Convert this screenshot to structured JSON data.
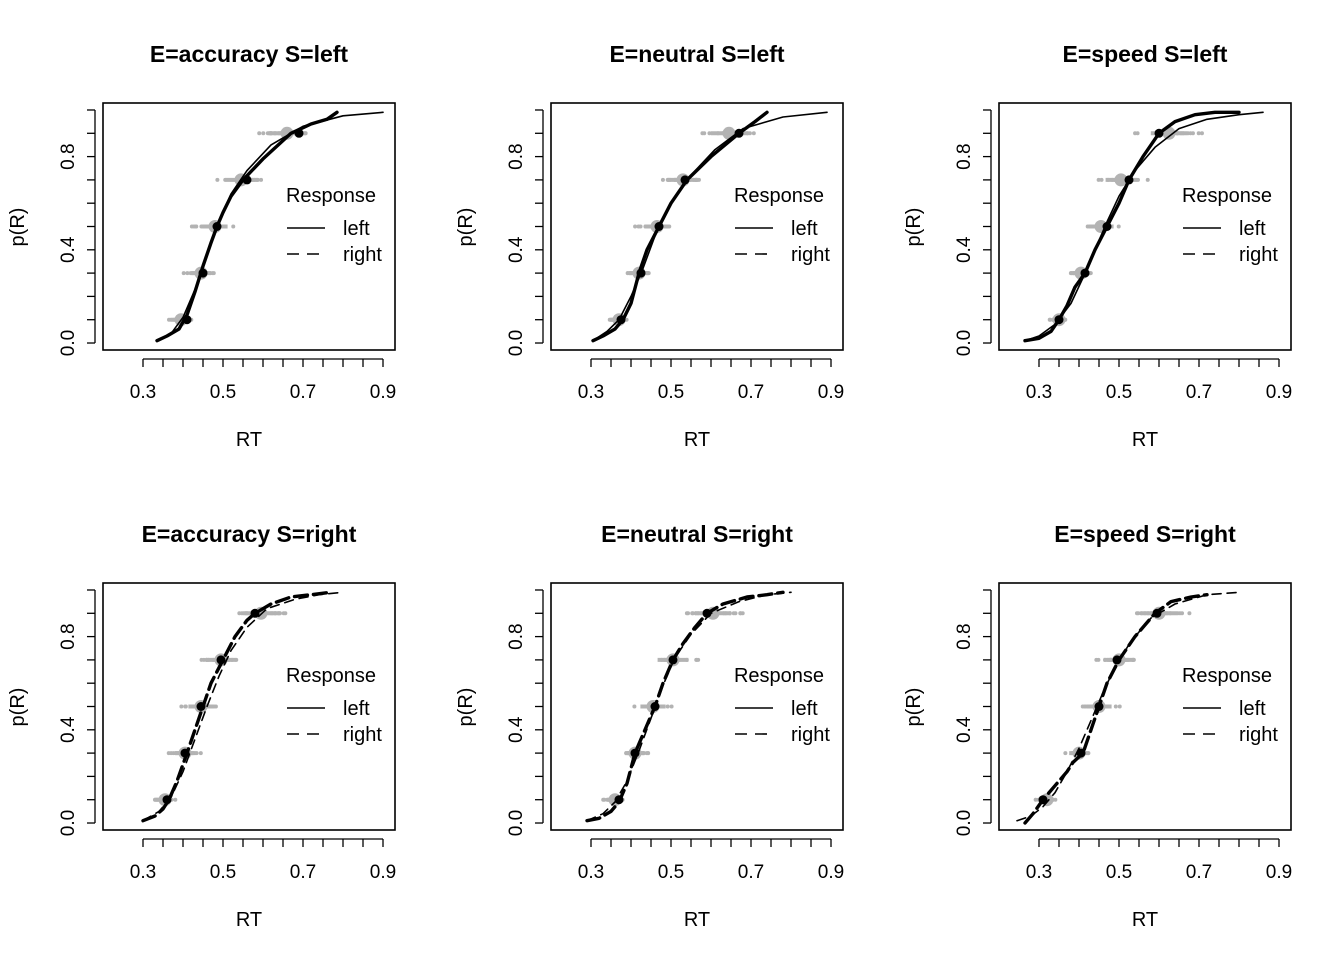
{
  "chart_data": [
    {
      "type": "line",
      "title": "E=accuracy S=left",
      "xlabel": "RT",
      "ylabel": "p(R)",
      "xlim": [
        0.2,
        0.93
      ],
      "ylim": [
        -0.03,
        1.03
      ],
      "xticks": [
        "0.3",
        "0.5",
        "0.7",
        "0.9"
      ],
      "yticks": [
        "0.0",
        "0.4",
        "0.8"
      ],
      "legend": {
        "title": "Response",
        "entries": [
          "left",
          "right"
        ],
        "styles": [
          "solid",
          "dashed"
        ]
      },
      "series": [
        {
          "name": "left (observed)",
          "style": "solid-thick",
          "x": [
            0.335,
            0.36,
            0.39,
            0.41,
            0.43,
            0.45,
            0.47,
            0.485,
            0.5,
            0.52,
            0.55,
            0.6,
            0.67,
            0.72,
            0.76,
            0.785
          ],
          "y": [
            0.01,
            0.03,
            0.06,
            0.12,
            0.22,
            0.33,
            0.43,
            0.5,
            0.56,
            0.63,
            0.7,
            0.79,
            0.9,
            0.94,
            0.96,
            0.99
          ]
        },
        {
          "name": "left (model)",
          "style": "solid-thin",
          "x": [
            0.335,
            0.37,
            0.4,
            0.43,
            0.46,
            0.49,
            0.52,
            0.56,
            0.62,
            0.7,
            0.8,
            0.9
          ],
          "y": [
            0.01,
            0.04,
            0.11,
            0.23,
            0.38,
            0.52,
            0.64,
            0.74,
            0.85,
            0.93,
            0.975,
            0.99
          ]
        }
      ],
      "quantiles": {
        "p": [
          0.1,
          0.3,
          0.5,
          0.7,
          0.9
        ],
        "observed": [
          0.41,
          0.45,
          0.485,
          0.56,
          0.69
        ],
        "predicted": [
          0.395,
          0.445,
          0.48,
          0.545,
          0.66
        ]
      }
    },
    {
      "type": "line",
      "title": "E=neutral S=left",
      "xlabel": "RT",
      "ylabel": "p(R)",
      "xlim": [
        0.2,
        0.93
      ],
      "ylim": [
        -0.03,
        1.03
      ],
      "xticks": [
        "0.3",
        "0.5",
        "0.7",
        "0.9"
      ],
      "yticks": [
        "0.0",
        "0.4",
        "0.8"
      ],
      "legend": {
        "title": "Response",
        "entries": [
          "left",
          "right"
        ],
        "styles": [
          "solid",
          "dashed"
        ]
      },
      "series": [
        {
          "name": "left (observed)",
          "style": "solid-thick",
          "x": [
            0.305,
            0.33,
            0.36,
            0.38,
            0.4,
            0.42,
            0.44,
            0.47,
            0.5,
            0.54,
            0.6,
            0.67,
            0.71,
            0.74
          ],
          "y": [
            0.01,
            0.03,
            0.06,
            0.1,
            0.17,
            0.3,
            0.4,
            0.5,
            0.6,
            0.7,
            0.8,
            0.9,
            0.95,
            0.99
          ]
        },
        {
          "name": "left (model)",
          "style": "solid-thin",
          "x": [
            0.305,
            0.34,
            0.37,
            0.4,
            0.43,
            0.46,
            0.5,
            0.55,
            0.61,
            0.68,
            0.78,
            0.89
          ],
          "y": [
            0.01,
            0.05,
            0.1,
            0.2,
            0.32,
            0.46,
            0.6,
            0.72,
            0.83,
            0.92,
            0.97,
            0.99
          ]
        }
      ],
      "quantiles": {
        "p": [
          0.1,
          0.3,
          0.5,
          0.7,
          0.9
        ],
        "observed": [
          0.375,
          0.425,
          0.47,
          0.535,
          0.67
        ],
        "predicted": [
          0.37,
          0.42,
          0.465,
          0.53,
          0.645
        ]
      }
    },
    {
      "type": "line",
      "title": "E=speed S=left",
      "xlabel": "RT",
      "ylabel": "p(R)",
      "xlim": [
        0.2,
        0.93
      ],
      "ylim": [
        -0.03,
        1.03
      ],
      "xticks": [
        "0.3",
        "0.5",
        "0.7",
        "0.9"
      ],
      "yticks": [
        "0.0",
        "0.4",
        "0.8"
      ],
      "legend": {
        "title": "Response",
        "entries": [
          "left",
          "right"
        ],
        "styles": [
          "solid",
          "dashed"
        ]
      },
      "series": [
        {
          "name": "left (observed)",
          "style": "solid-thick",
          "x": [
            0.265,
            0.3,
            0.33,
            0.35,
            0.37,
            0.39,
            0.415,
            0.44,
            0.47,
            0.5,
            0.525,
            0.56,
            0.6,
            0.64,
            0.69,
            0.74,
            0.8
          ],
          "y": [
            0.01,
            0.02,
            0.05,
            0.1,
            0.16,
            0.24,
            0.3,
            0.4,
            0.5,
            0.6,
            0.7,
            0.8,
            0.9,
            0.95,
            0.98,
            0.99,
            0.99
          ]
        },
        {
          "name": "left (model)",
          "style": "solid-thin",
          "x": [
            0.265,
            0.3,
            0.34,
            0.38,
            0.41,
            0.44,
            0.47,
            0.5,
            0.54,
            0.59,
            0.65,
            0.72,
            0.8,
            0.86
          ],
          "y": [
            0.01,
            0.03,
            0.08,
            0.17,
            0.28,
            0.4,
            0.52,
            0.63,
            0.74,
            0.84,
            0.92,
            0.96,
            0.98,
            0.99
          ]
        }
      ],
      "quantiles": {
        "p": [
          0.1,
          0.3,
          0.5,
          0.7,
          0.9
        ],
        "observed": [
          0.35,
          0.415,
          0.47,
          0.525,
          0.6
        ],
        "predicted": [
          0.35,
          0.405,
          0.455,
          0.505,
          0.625
        ]
      }
    },
    {
      "type": "line",
      "title": "E=accuracy S=right",
      "xlabel": "RT",
      "ylabel": "p(R)",
      "xlim": [
        0.2,
        0.93
      ],
      "ylim": [
        -0.03,
        1.03
      ],
      "xticks": [
        "0.3",
        "0.5",
        "0.7",
        "0.9"
      ],
      "yticks": [
        "0.0",
        "0.4",
        "0.8"
      ],
      "legend": {
        "title": "Response",
        "entries": [
          "left",
          "right"
        ],
        "styles": [
          "solid",
          "dashed"
        ]
      },
      "series": [
        {
          "name": "right (observed)",
          "style": "dashed-thick",
          "x": [
            0.3,
            0.33,
            0.35,
            0.365,
            0.385,
            0.41,
            0.43,
            0.45,
            0.47,
            0.5,
            0.53,
            0.56,
            0.58,
            0.62,
            0.67,
            0.72,
            0.77
          ],
          "y": [
            0.01,
            0.03,
            0.06,
            0.1,
            0.18,
            0.3,
            0.4,
            0.5,
            0.6,
            0.7,
            0.8,
            0.87,
            0.9,
            0.94,
            0.97,
            0.98,
            0.99
          ]
        },
        {
          "name": "right (model)",
          "style": "dashed-thin",
          "x": [
            0.3,
            0.34,
            0.37,
            0.4,
            0.43,
            0.46,
            0.49,
            0.52,
            0.56,
            0.61,
            0.68,
            0.74,
            0.8
          ],
          "y": [
            0.01,
            0.05,
            0.11,
            0.22,
            0.36,
            0.5,
            0.63,
            0.74,
            0.84,
            0.92,
            0.96,
            0.98,
            0.99
          ]
        }
      ],
      "quantiles": {
        "p": [
          0.1,
          0.3,
          0.5,
          0.7,
          0.9
        ],
        "observed": [
          0.36,
          0.405,
          0.445,
          0.495,
          0.58
        ],
        "predicted": [
          0.355,
          0.405,
          0.445,
          0.495,
          0.595
        ]
      }
    },
    {
      "type": "line",
      "title": "E=neutral S=right",
      "xlabel": "RT",
      "ylabel": "p(R)",
      "xlim": [
        0.2,
        0.93
      ],
      "ylim": [
        -0.03,
        1.03
      ],
      "xticks": [
        "0.3",
        "0.5",
        "0.7",
        "0.9"
      ],
      "yticks": [
        "0.0",
        "0.4",
        "0.8"
      ],
      "legend": {
        "title": "Response",
        "entries": [
          "left",
          "right"
        ],
        "styles": [
          "solid",
          "dashed"
        ]
      },
      "series": [
        {
          "name": "right (observed)",
          "style": "dashed-thick",
          "x": [
            0.29,
            0.32,
            0.35,
            0.37,
            0.39,
            0.41,
            0.435,
            0.46,
            0.48,
            0.505,
            0.53,
            0.56,
            0.59,
            0.63,
            0.69,
            0.74,
            0.78
          ],
          "y": [
            0.01,
            0.02,
            0.05,
            0.09,
            0.17,
            0.3,
            0.4,
            0.5,
            0.6,
            0.7,
            0.77,
            0.84,
            0.9,
            0.94,
            0.97,
            0.98,
            0.99
          ]
        },
        {
          "name": "right (model)",
          "style": "dashed-thin",
          "x": [
            0.29,
            0.33,
            0.36,
            0.39,
            0.42,
            0.45,
            0.48,
            0.51,
            0.55,
            0.6,
            0.67,
            0.74,
            0.8
          ],
          "y": [
            0.01,
            0.04,
            0.09,
            0.18,
            0.31,
            0.45,
            0.59,
            0.71,
            0.81,
            0.9,
            0.95,
            0.98,
            0.99
          ]
        }
      ],
      "quantiles": {
        "p": [
          0.1,
          0.3,
          0.5,
          0.7,
          0.9
        ],
        "observed": [
          0.37,
          0.41,
          0.46,
          0.505,
          0.59
        ],
        "predicted": [
          0.36,
          0.41,
          0.455,
          0.505,
          0.605
        ]
      }
    },
    {
      "type": "line",
      "title": "E=speed S=right",
      "xlabel": "RT",
      "ylabel": "p(R)",
      "xlim": [
        0.2,
        0.93
      ],
      "ylim": [
        -0.03,
        1.03
      ],
      "xticks": [
        "0.3",
        "0.5",
        "0.7",
        "0.9"
      ],
      "yticks": [
        "0.0",
        "0.4",
        "0.8"
      ],
      "legend": {
        "title": "Response",
        "entries": [
          "left",
          "right"
        ],
        "styles": [
          "solid",
          "dashed"
        ]
      },
      "series": [
        {
          "name": "right (observed)",
          "style": "dashed-thick",
          "x": [
            0.265,
            0.285,
            0.31,
            0.34,
            0.37,
            0.385,
            0.41,
            0.43,
            0.45,
            0.47,
            0.5,
            0.54,
            0.59,
            0.63,
            0.68,
            0.72
          ],
          "y": [
            0.0,
            0.04,
            0.1,
            0.16,
            0.22,
            0.26,
            0.3,
            0.4,
            0.5,
            0.6,
            0.7,
            0.8,
            0.9,
            0.95,
            0.97,
            0.98
          ]
        },
        {
          "name": "right (model)",
          "style": "dashed-thin",
          "x": [
            0.245,
            0.28,
            0.31,
            0.34,
            0.37,
            0.4,
            0.43,
            0.46,
            0.49,
            0.53,
            0.58,
            0.64,
            0.72,
            0.8
          ],
          "y": [
            0.01,
            0.03,
            0.07,
            0.13,
            0.22,
            0.32,
            0.44,
            0.56,
            0.67,
            0.78,
            0.88,
            0.94,
            0.98,
            0.99
          ]
        }
      ],
      "quantiles": {
        "p": [
          0.1,
          0.3,
          0.5,
          0.7,
          0.9
        ],
        "observed": [
          0.31,
          0.405,
          0.45,
          0.495,
          0.595
        ],
        "predicted": [
          0.32,
          0.4,
          0.45,
          0.5,
          0.6
        ]
      }
    }
  ]
}
